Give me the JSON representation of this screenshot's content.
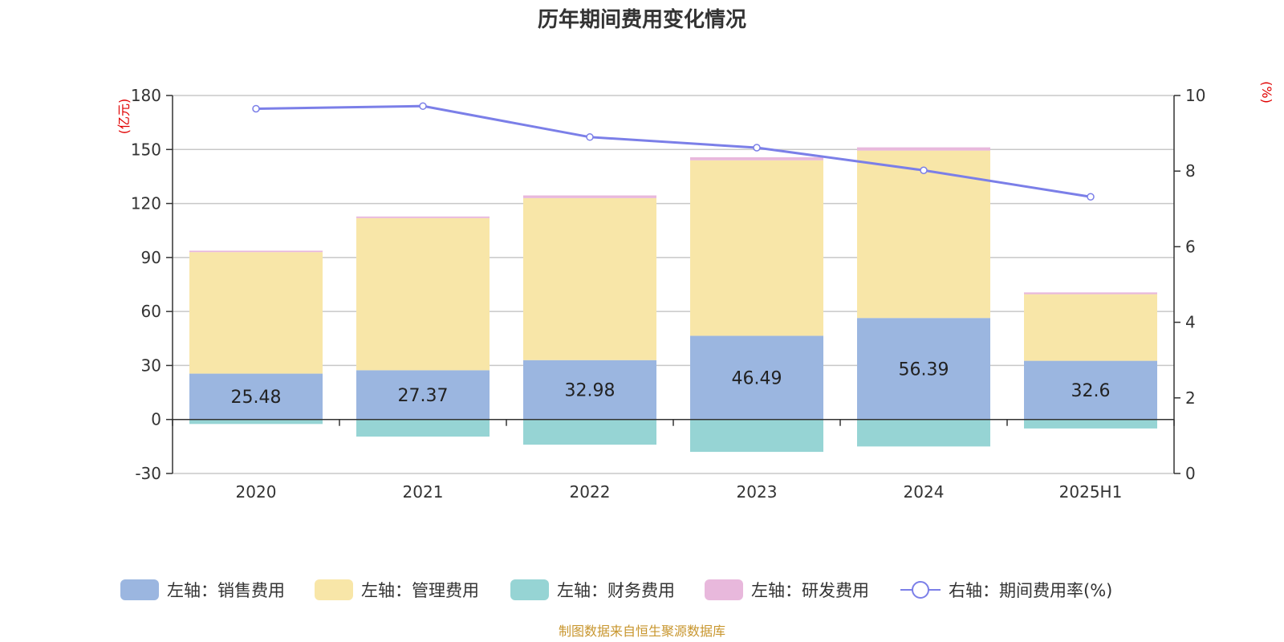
{
  "chart_data": {
    "type": "bar",
    "title": "历年期间费用变化情况",
    "categories": [
      "2020",
      "2021",
      "2022",
      "2023",
      "2024",
      "2025H1"
    ],
    "left_axis": {
      "unit": "(亿元)",
      "ylim": [
        -30,
        180
      ],
      "ticks": [
        -30,
        0,
        30,
        60,
        90,
        120,
        150,
        180
      ]
    },
    "right_axis": {
      "unit": "(%)",
      "ylim": [
        0,
        10
      ],
      "ticks": [
        0,
        2,
        4,
        6,
        8,
        10
      ]
    },
    "series": [
      {
        "name": "左轴：销售费用",
        "type": "bar",
        "axis": "left",
        "color": "#9bb6e0",
        "values": [
          25.48,
          27.37,
          32.98,
          46.49,
          56.39,
          32.6
        ],
        "labels": [
          "25.48",
          "27.37",
          "32.98",
          "46.49",
          "56.39",
          "32.6"
        ]
      },
      {
        "name": "左轴：管理费用",
        "type": "bar",
        "axis": "left",
        "color": "#f8e6a8",
        "values": [
          67.5,
          84.5,
          90.0,
          97.5,
          93.0,
          37.0
        ]
      },
      {
        "name": "左轴：财务费用",
        "type": "bar",
        "axis": "left",
        "color": "#96d4d4",
        "values": [
          -2.5,
          -9.5,
          -14.0,
          -18.0,
          -15.0,
          -5.0
        ]
      },
      {
        "name": "左轴：研发费用",
        "type": "bar",
        "axis": "left",
        "color": "#e8b8dc",
        "values": [
          0.8,
          0.9,
          1.5,
          1.7,
          1.8,
          1.0
        ]
      },
      {
        "name": "右轴：期间费用率(%)",
        "type": "line",
        "axis": "right",
        "color": "#7b7fe8",
        "values": [
          9.65,
          9.72,
          8.9,
          8.62,
          8.02,
          7.32
        ]
      }
    ],
    "grid": true,
    "legend": "bottom"
  },
  "source": "制图数据来自恒生聚源数据库"
}
